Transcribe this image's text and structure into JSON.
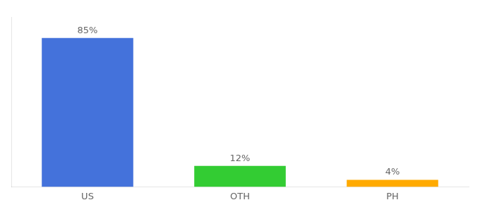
{
  "chart_data": {
    "type": "bar",
    "categories": [
      "US",
      "OTH",
      "PH"
    ],
    "values": [
      85,
      12,
      4
    ],
    "value_labels": [
      "85%",
      "12%",
      "4%"
    ],
    "colors": [
      "#4472db",
      "#33cc33",
      "#ffaa00"
    ],
    "data_labels": true,
    "ylim": [
      0,
      97
    ],
    "tick_labels": "x",
    "grid": false
  }
}
